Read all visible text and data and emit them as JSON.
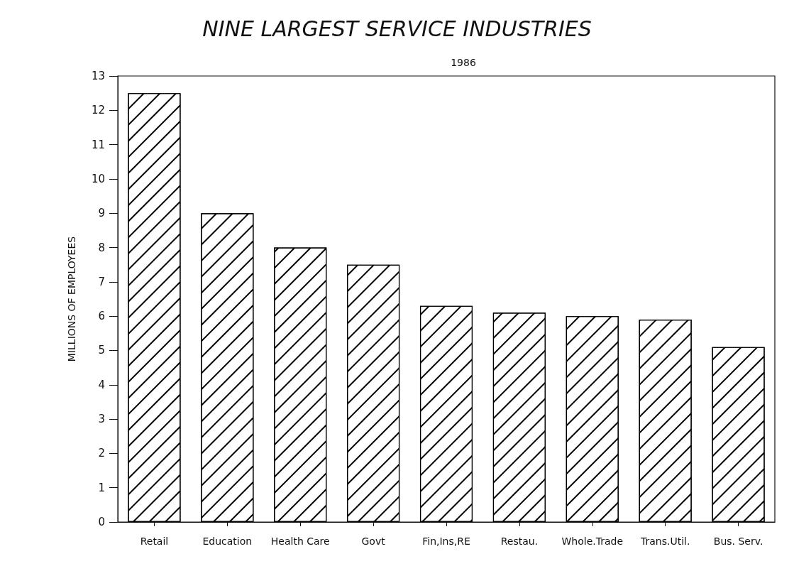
{
  "chart_data": {
    "type": "bar",
    "title": "NINE LARGEST SERVICE INDUSTRIES",
    "subtitle": "1986",
    "ylabel": "MILLIONS OF EMPLOYEES",
    "categories": [
      "Retail",
      "Education",
      "Health Care",
      "Govt",
      "Fin,Ins,RE",
      "Restau.",
      "Whole.Trade",
      "Trans.Util.",
      "Bus. Serv."
    ],
    "values": [
      12.5,
      9.0,
      8.0,
      7.5,
      6.3,
      6.1,
      6.0,
      5.9,
      5.1
    ],
    "color": "#ffffff",
    "ylim": [
      0,
      13
    ],
    "yticks": [
      0,
      1,
      2,
      3,
      4,
      5,
      6,
      7,
      8,
      9,
      10,
      11,
      12,
      13
    ],
    "grid": false
  }
}
